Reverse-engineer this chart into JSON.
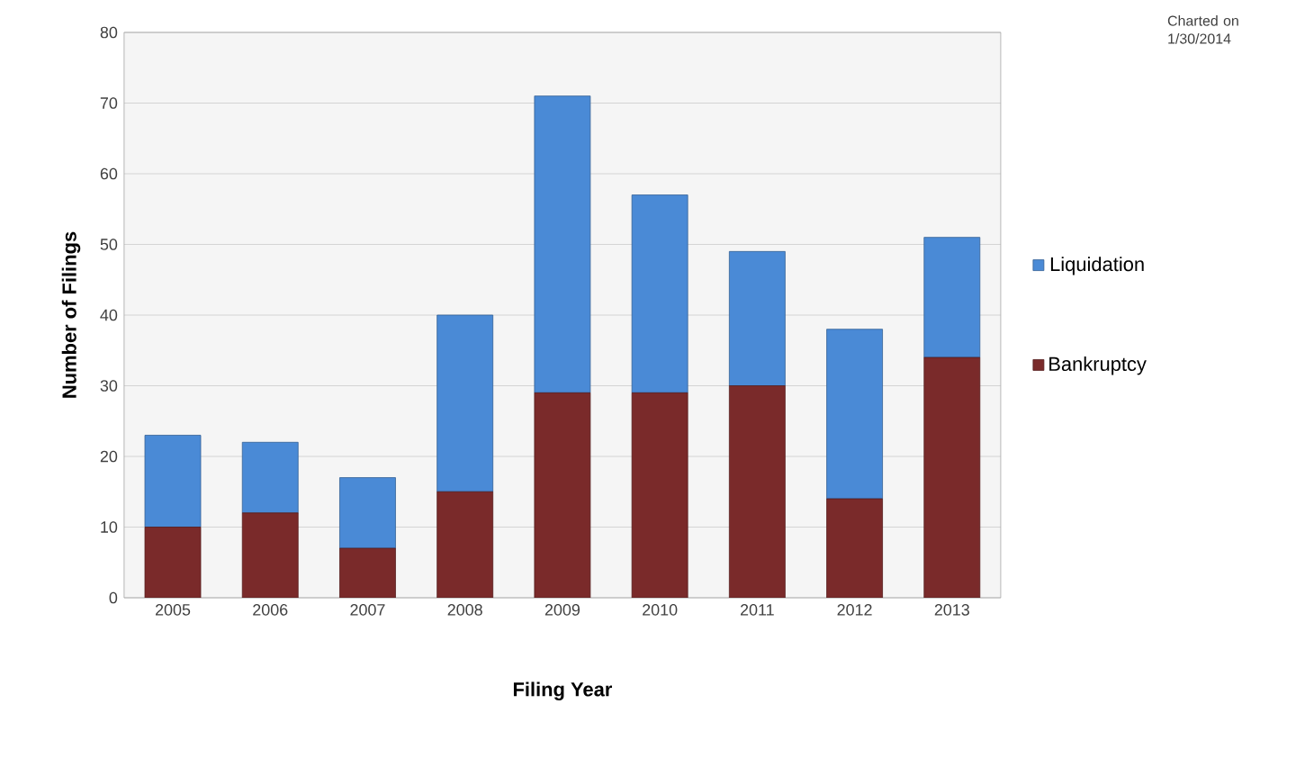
{
  "chart_data": {
    "type": "bar",
    "stacked": true,
    "xlabel": "Filing Year",
    "ylabel": "Number of Filings",
    "categories": [
      "2005",
      "2006",
      "2007",
      "2008",
      "2009",
      "2010",
      "2011",
      "2012",
      "2013"
    ],
    "series": [
      {
        "name": "Bankruptcy",
        "color": "#7a2a2a",
        "values": [
          10,
          12,
          7,
          15,
          29,
          29,
          30,
          14,
          34
        ]
      },
      {
        "name": "Liquidation",
        "color": "#4a8ad6",
        "values": [
          13,
          10,
          10,
          25,
          42,
          28,
          19,
          24,
          17
        ]
      }
    ],
    "ylim": [
      0,
      80
    ],
    "yticks": [
      0,
      10,
      20,
      30,
      40,
      50,
      60,
      70,
      80
    ],
    "grid": "y",
    "legend": "right",
    "annotations": [
      "Charted on 1/30/2014"
    ]
  }
}
